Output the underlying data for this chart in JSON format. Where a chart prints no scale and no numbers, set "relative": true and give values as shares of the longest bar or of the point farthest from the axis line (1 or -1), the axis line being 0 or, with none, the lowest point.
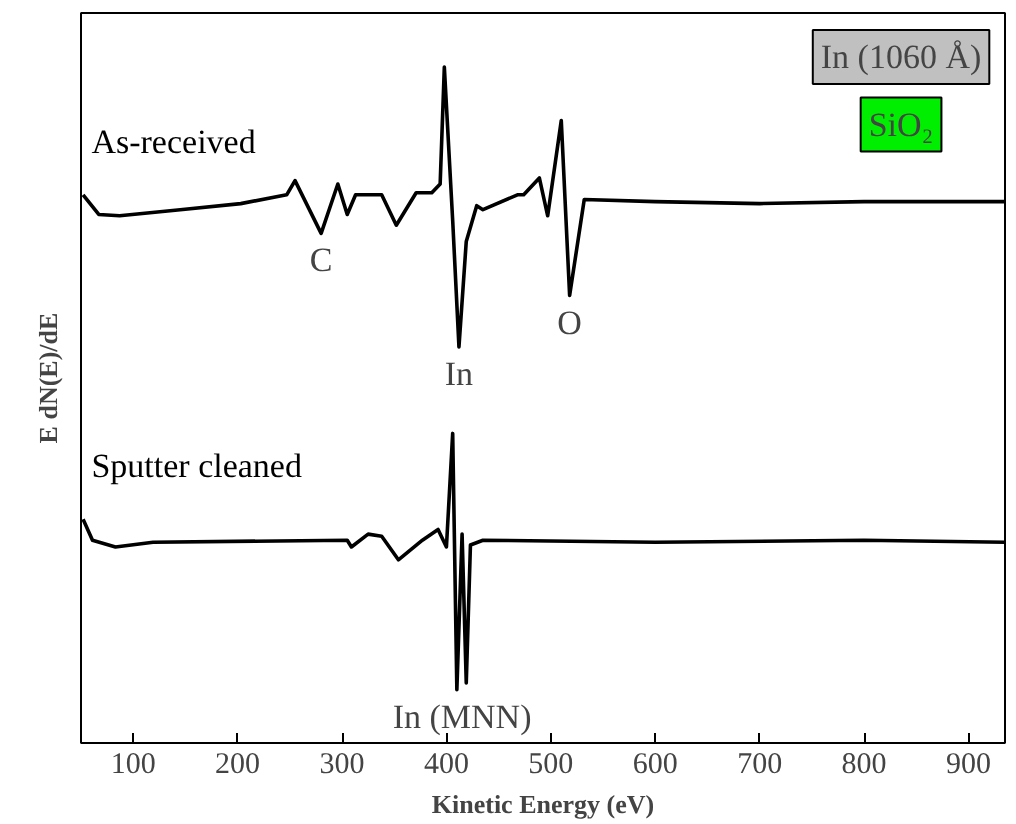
{
  "chart_data": {
    "type": "line",
    "relative": true,
    "xlabel": "Kinetic Energy (eV)",
    "ylabel": "E dN(E)/dE",
    "xlim": [
      50,
      935
    ],
    "xticks": [
      100,
      200,
      300,
      400,
      500,
      600,
      700,
      800,
      900
    ],
    "grid": false,
    "marker": "none",
    "line_style": "solid",
    "series": [
      {
        "name": "As-received",
        "color": "#000000",
        "x": [
          52,
          67,
          87,
          145,
          203,
          247,
          255,
          280,
          296,
          305,
          313,
          338,
          352,
          371,
          386,
          394,
          398,
          406,
          412,
          419,
          429,
          435,
          468,
          474,
          489,
          497,
          510,
          518,
          532,
          600,
          700,
          800,
          935
        ],
        "values": [
          0.811,
          0.782,
          0.78,
          0.789,
          0.798,
          0.811,
          0.832,
          0.754,
          0.827,
          0.782,
          0.811,
          0.811,
          0.766,
          0.814,
          0.814,
          0.827,
          1.0,
          0.773,
          0.586,
          0.742,
          0.795,
          0.789,
          0.811,
          0.811,
          0.836,
          0.78,
          0.921,
          0.662,
          0.804,
          0.801,
          0.798,
          0.801,
          0.801
        ]
      },
      {
        "name": "Sputter cleaned",
        "color": "#000000",
        "x": [
          52,
          61,
          83,
          119,
          305,
          309,
          325,
          338,
          354,
          377,
          392,
          400,
          406,
          410,
          415,
          419,
          423,
          435,
          600,
          800,
          935
        ],
        "values": [
          0.331,
          0.3,
          0.29,
          0.297,
          0.3,
          0.29,
          0.309,
          0.306,
          0.271,
          0.3,
          0.316,
          0.29,
          0.458,
          0.079,
          0.309,
          0.089,
          0.293,
          0.3,
          0.297,
          0.3,
          0.297
        ]
      }
    ],
    "annotations": [
      {
        "text": "C",
        "x": 280,
        "y": 0.754
      },
      {
        "text": "In",
        "x": 412,
        "y": 0.586
      },
      {
        "text": "O",
        "x": 518,
        "y": 0.662
      },
      {
        "text": "In (MNN)",
        "x": 415,
        "y": 0.079
      },
      "In (1060 Å)",
      "SiO₂"
    ]
  }
}
